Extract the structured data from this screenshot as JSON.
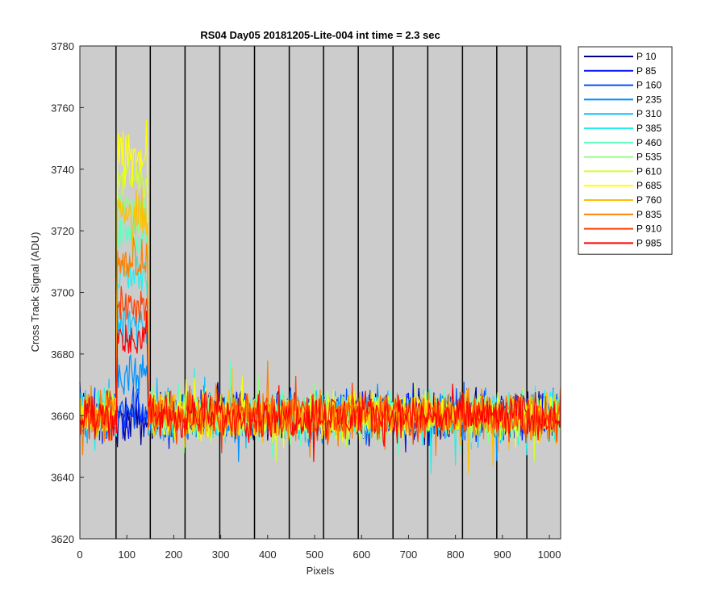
{
  "chart_data": {
    "type": "line",
    "title": "RS04 Day05 20181205-Lite-004 int time = 2.3 sec",
    "xlabel": "Pixels",
    "ylabel": "Cross Track Signal (ADU)",
    "xlim": [
      0,
      1024
    ],
    "ylim": [
      3620,
      3780
    ],
    "xticks": [
      0,
      100,
      200,
      300,
      400,
      500,
      600,
      700,
      800,
      900,
      1000
    ],
    "yticks": [
      3620,
      3640,
      3660,
      3680,
      3700,
      3720,
      3740,
      3760,
      3780
    ],
    "background": "#cccccc",
    "grid": false,
    "legend_location": "outside-right",
    "vertical_markers": [
      77,
      150,
      224,
      298,
      372,
      446,
      519,
      593,
      667,
      741,
      815,
      888,
      952
    ],
    "baseline_mean": 3660,
    "baseline_noise_range": [
      3637,
      3690
    ],
    "hot_region": {
      "x": [
        80,
        145
      ],
      "peak_values_by_series": [
        3658,
        3660,
        3663,
        3672,
        3690,
        3705,
        3718,
        3728,
        3738,
        3744,
        3725,
        3710,
        3696,
        3685
      ]
    },
    "series": [
      {
        "name": "P 10",
        "color": "#00008f"
      },
      {
        "name": "P 85",
        "color": "#0010ff"
      },
      {
        "name": "P 160",
        "color": "#0050ff"
      },
      {
        "name": "P 235",
        "color": "#0090ff"
      },
      {
        "name": "P 310",
        "color": "#10c0ff"
      },
      {
        "name": "P 385",
        "color": "#20f0f0"
      },
      {
        "name": "P 460",
        "color": "#60ffc0"
      },
      {
        "name": "P 535",
        "color": "#90ff80"
      },
      {
        "name": "P 610",
        "color": "#d0ff30"
      },
      {
        "name": "P 685",
        "color": "#ffff00"
      },
      {
        "name": "P 760",
        "color": "#ffc000"
      },
      {
        "name": "P 835",
        "color": "#ff8000"
      },
      {
        "name": "P 910",
        "color": "#ff4000"
      },
      {
        "name": "P 985",
        "color": "#ff0000"
      }
    ]
  }
}
